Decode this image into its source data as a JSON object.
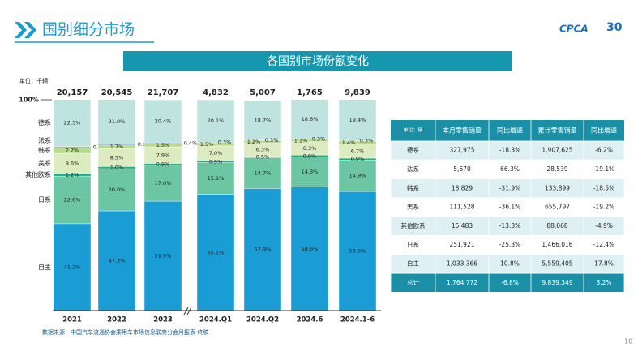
{
  "header": {
    "title": "国别细分市场",
    "logo": "CPCA",
    "badge": "30"
  },
  "chart_data": {
    "type": "stacked_bar",
    "title": "各国别市场份额变化",
    "unit": "单位：千辆",
    "yticks": [
      {
        "value": 100,
        "label": "100%"
      }
    ],
    "ylim": [
      0,
      100
    ],
    "categories": [
      "2021",
      "2022",
      "2023",
      "2024.Q1",
      "2024.Q2",
      "2024.6",
      "2024.1-6"
    ],
    "totals": {
      "values": [
        20157,
        20545,
        21707,
        4832,
        5007,
        1765,
        9839
      ],
      "value_labels": [
        "20,157",
        "20,545",
        "21,707",
        "4,832",
        "5,007",
        "1,765",
        "9,839"
      ]
    },
    "series": [
      {
        "name": "自主",
        "color": "#1a9dd4",
        "values": [
          41.2,
          47.3,
          51.9,
          55.1,
          57.9,
          58.6,
          56.5
        ],
        "value_labels": [
          "41.2%",
          "47.3%",
          "51.9%",
          "55.1%",
          "57.9%",
          "58.6%",
          "56.5%"
        ]
      },
      {
        "name": "日系",
        "color": "#6cc6a3",
        "values": [
          22.6,
          20.0,
          17.0,
          15.1,
          14.7,
          14.3,
          14.9
        ],
        "value_labels": [
          "22.6%",
          "20.0%",
          "17.0%",
          "15.1%",
          "14.7%",
          "14.3%",
          "14.9%"
        ]
      },
      {
        "name": "其他欧系",
        "color": "#1fae86",
        "values": [
          1.2,
          1.0,
          0.9,
          0.9,
          0.5,
          0.9,
          0.9
        ],
        "value_labels": [
          "1.2%",
          "1.0%",
          "0.9%",
          "0.9%",
          "0.5%",
          "0.9%",
          "0.9%"
        ]
      },
      {
        "name": "美系",
        "color": "#dcecc0",
        "values": [
          9.6,
          8.5,
          7.9,
          7.0,
          6.3,
          6.3,
          6.7
        ],
        "value_labels": [
          "9.6%",
          "8.5%",
          "7.9%",
          "7.0%",
          "6.3%",
          "6.3%",
          "6.7%"
        ]
      },
      {
        "name": "韩系",
        "color": "#b7db8c",
        "values": [
          2.7,
          1.7,
          1.5,
          1.5,
          1.2,
          1.1,
          1.4
        ],
        "value_labels": [
          "2.7%",
          "1.7%",
          "1.5%",
          "1.5%",
          "1.2%",
          "1.1%",
          "1.4%"
        ]
      },
      {
        "name": "法系",
        "color": "#8aa3d6",
        "values": [
          0.5,
          0.6,
          0.4,
          0.3,
          0.3,
          0.3,
          0.3
        ],
        "value_labels": [
          "0.5%",
          "0.6%",
          "0.4%",
          "0.3%",
          "0.3%",
          "0.3%",
          "0.3%"
        ]
      },
      {
        "name": "德系",
        "color": "#bfe4df",
        "values": [
          22.3,
          21.0,
          20.4,
          20.1,
          18.7,
          18.6,
          19.4
        ],
        "value_labels": [
          "22.3%",
          "21.0%",
          "20.4%",
          "20.1%",
          "18.7%",
          "18.6%",
          "19.4%"
        ]
      }
    ],
    "source": "数据来源：中国汽车流通协会乘用车市场信息联席分会月报表-终稿"
  },
  "table": {
    "header": [
      "单位：辆",
      "本月零售销量",
      "同比增速",
      "累计零售销量",
      "同比增速"
    ],
    "rows": [
      [
        "德系",
        "327,975",
        "-18.3%",
        "1,907,625",
        "-6.2%"
      ],
      [
        "法系",
        "5,670",
        "66.3%",
        "28,539",
        "-19.1%"
      ],
      [
        "韩系",
        "18,829",
        "-31.9%",
        "133,899",
        "-18.5%"
      ],
      [
        "美系",
        "111,528",
        "-36.1%",
        "655,797",
        "-19.2%"
      ],
      [
        "其他欧系",
        "15,483",
        "-13.3%",
        "88,068",
        "-4.9%"
      ],
      [
        "日系",
        "251,921",
        "-25.3%",
        "1,466,016",
        "-12.4%"
      ],
      [
        "自主",
        "1,033,366",
        "10.8%",
        "5,559,405",
        "17.8%"
      ],
      [
        "总计",
        "1,764,772",
        "-6.8%",
        "9,839,349",
        "3.2%"
      ]
    ]
  },
  "page_number": "10"
}
